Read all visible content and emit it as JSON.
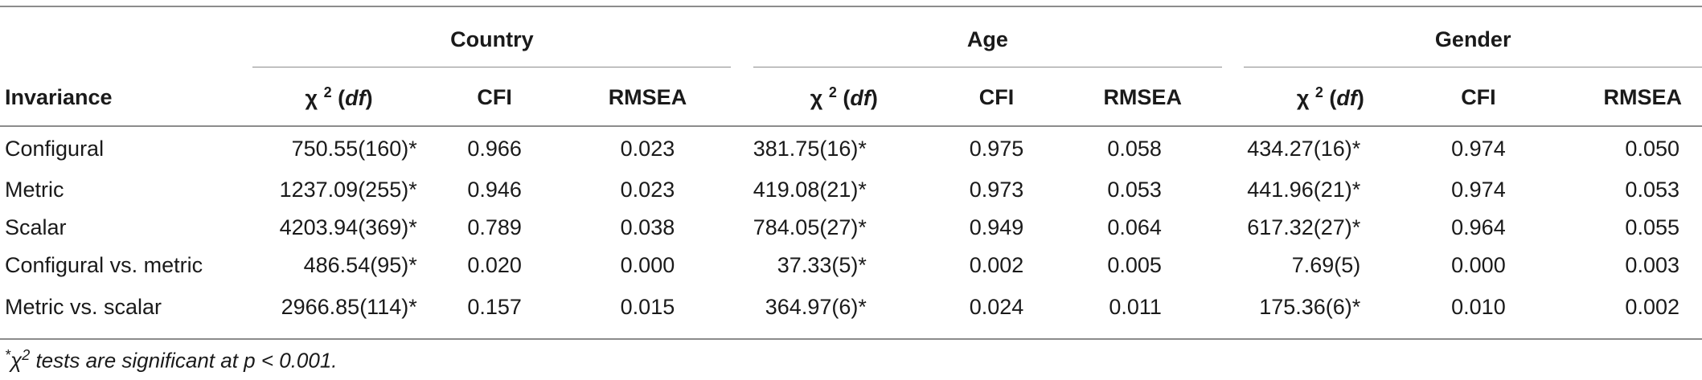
{
  "groups": {
    "country": "Country",
    "age": "Age",
    "gender": "Gender"
  },
  "columns": {
    "invariance": "Invariance",
    "chi_symbol": "χ",
    "chi_sup": "2",
    "df": "df",
    "df_open": " (",
    "df_close": ")",
    "cfi": "CFI",
    "rmsea": "RMSEA"
  },
  "rows": [
    {
      "label": "Configural",
      "country": [
        "750.55(160)*",
        "0.966",
        "0.023"
      ],
      "age": [
        "381.75(16)*",
        "0.975",
        "0.058"
      ],
      "gender": [
        "434.27(16)*",
        "0.974",
        "0.050"
      ]
    },
    {
      "label": "Metric",
      "country": [
        "1237.09(255)*",
        "0.946",
        "0.023"
      ],
      "age": [
        "419.08(21)*",
        "0.973",
        "0.053"
      ],
      "gender": [
        "441.96(21)*",
        "0.974",
        "0.053"
      ]
    },
    {
      "label": "Scalar",
      "country": [
        "4203.94(369)*",
        "0.789",
        "0.038"
      ],
      "age": [
        "784.05(27)*",
        "0.949",
        "0.064"
      ],
      "gender": [
        "617.32(27)*",
        "0.964",
        "0.055"
      ]
    },
    {
      "label": "Configural vs. metric",
      "country": [
        "486.54(95)*",
        "0.020",
        "0.000"
      ],
      "age": [
        "37.33(5)*",
        "0.002",
        "0.005"
      ],
      "gender": [
        "7.69(5)",
        "0.000",
        "0.003"
      ]
    },
    {
      "label": "Metric vs. scalar",
      "country": [
        "2966.85(114)*",
        "0.157",
        "0.015"
      ],
      "age": [
        "364.97(6)*",
        "0.024",
        "0.011"
      ],
      "gender": [
        "175.36(6)*",
        "0.010",
        "0.002"
      ]
    }
  ],
  "footnote": {
    "mark": "*",
    "chi": "χ",
    "sup": "2",
    "text": " tests are significant at p < 0.001."
  }
}
